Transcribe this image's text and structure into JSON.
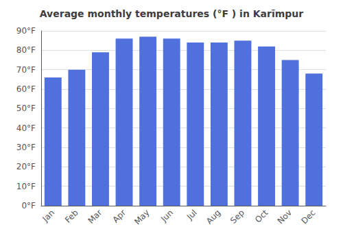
{
  "chart_data": {
    "type": "bar",
    "title": "Average monthly temperatures (°F ) in Karīmpur",
    "categories": [
      "Jan",
      "Feb",
      "Mar",
      "Apr",
      "May",
      "Jun",
      "Jul",
      "Aug",
      "Sep",
      "Oct",
      "Nov",
      "Dec"
    ],
    "values": [
      66,
      70,
      79,
      86,
      87,
      86,
      84,
      84,
      85,
      82,
      75,
      68
    ],
    "ylim": [
      0,
      90
    ],
    "yticks": [
      {
        "value": 0,
        "label": "0°F"
      },
      {
        "value": 10,
        "label": "10°F"
      },
      {
        "value": 20,
        "label": "20°F"
      },
      {
        "value": 30,
        "label": "30°F"
      },
      {
        "value": 40,
        "label": "40°F"
      },
      {
        "value": 50,
        "label": "50°F"
      },
      {
        "value": 60,
        "label": "60°F"
      },
      {
        "value": 70,
        "label": "70°F"
      },
      {
        "value": 80,
        "label": "80°F"
      },
      {
        "value": 90,
        "label": "90°F"
      }
    ],
    "grid": true
  }
}
